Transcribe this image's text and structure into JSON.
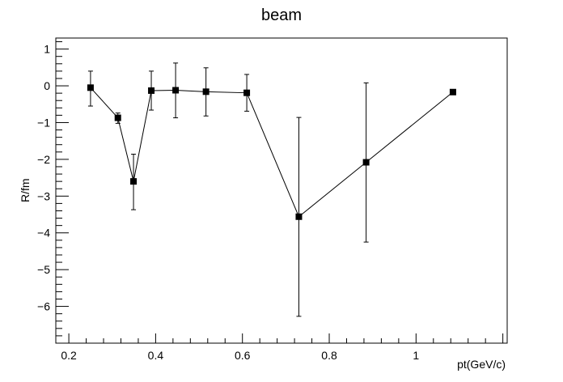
{
  "chart_data": {
    "type": "scatter",
    "title": "beam",
    "xlabel": "pt(GeV/c)",
    "ylabel": "R/fm",
    "xlim": [
      0.17,
      1.21
    ],
    "ylim": [
      -7.0,
      1.3
    ],
    "xticks": [
      0.2,
      0.4,
      0.6,
      0.8,
      1.0
    ],
    "xtick_labels": [
      "0.2",
      "0.4",
      "0.6",
      "0.8",
      "1"
    ],
    "yticks": [
      -6,
      -5,
      -4,
      -3,
      -2,
      -1,
      0,
      1
    ],
    "ytick_labels": [
      "−6",
      "−5",
      "−4",
      "−3",
      "−2",
      "−1",
      "0",
      "1"
    ],
    "grid": false,
    "legend": "none",
    "marker": "square",
    "line": true,
    "series": [
      {
        "x": [
          0.25,
          0.313,
          0.349,
          0.39,
          0.446,
          0.516,
          0.61,
          0.73,
          0.885,
          1.085
        ],
        "y": [
          -0.05,
          -0.87,
          -2.6,
          -0.13,
          -0.12,
          -0.16,
          -0.19,
          -3.56,
          -2.08,
          -0.17
        ],
        "err_low": [
          0.5,
          0.15,
          0.77,
          0.53,
          0.75,
          0.66,
          0.5,
          2.71,
          2.17,
          0.0
        ],
        "err_high": [
          0.45,
          0.13,
          0.74,
          0.53,
          0.74,
          0.65,
          0.5,
          2.7,
          2.16,
          0.0
        ]
      }
    ]
  },
  "colors": {
    "axis": "#000000",
    "marker": "#000000",
    "line": "#000000",
    "background": "#ffffff"
  }
}
